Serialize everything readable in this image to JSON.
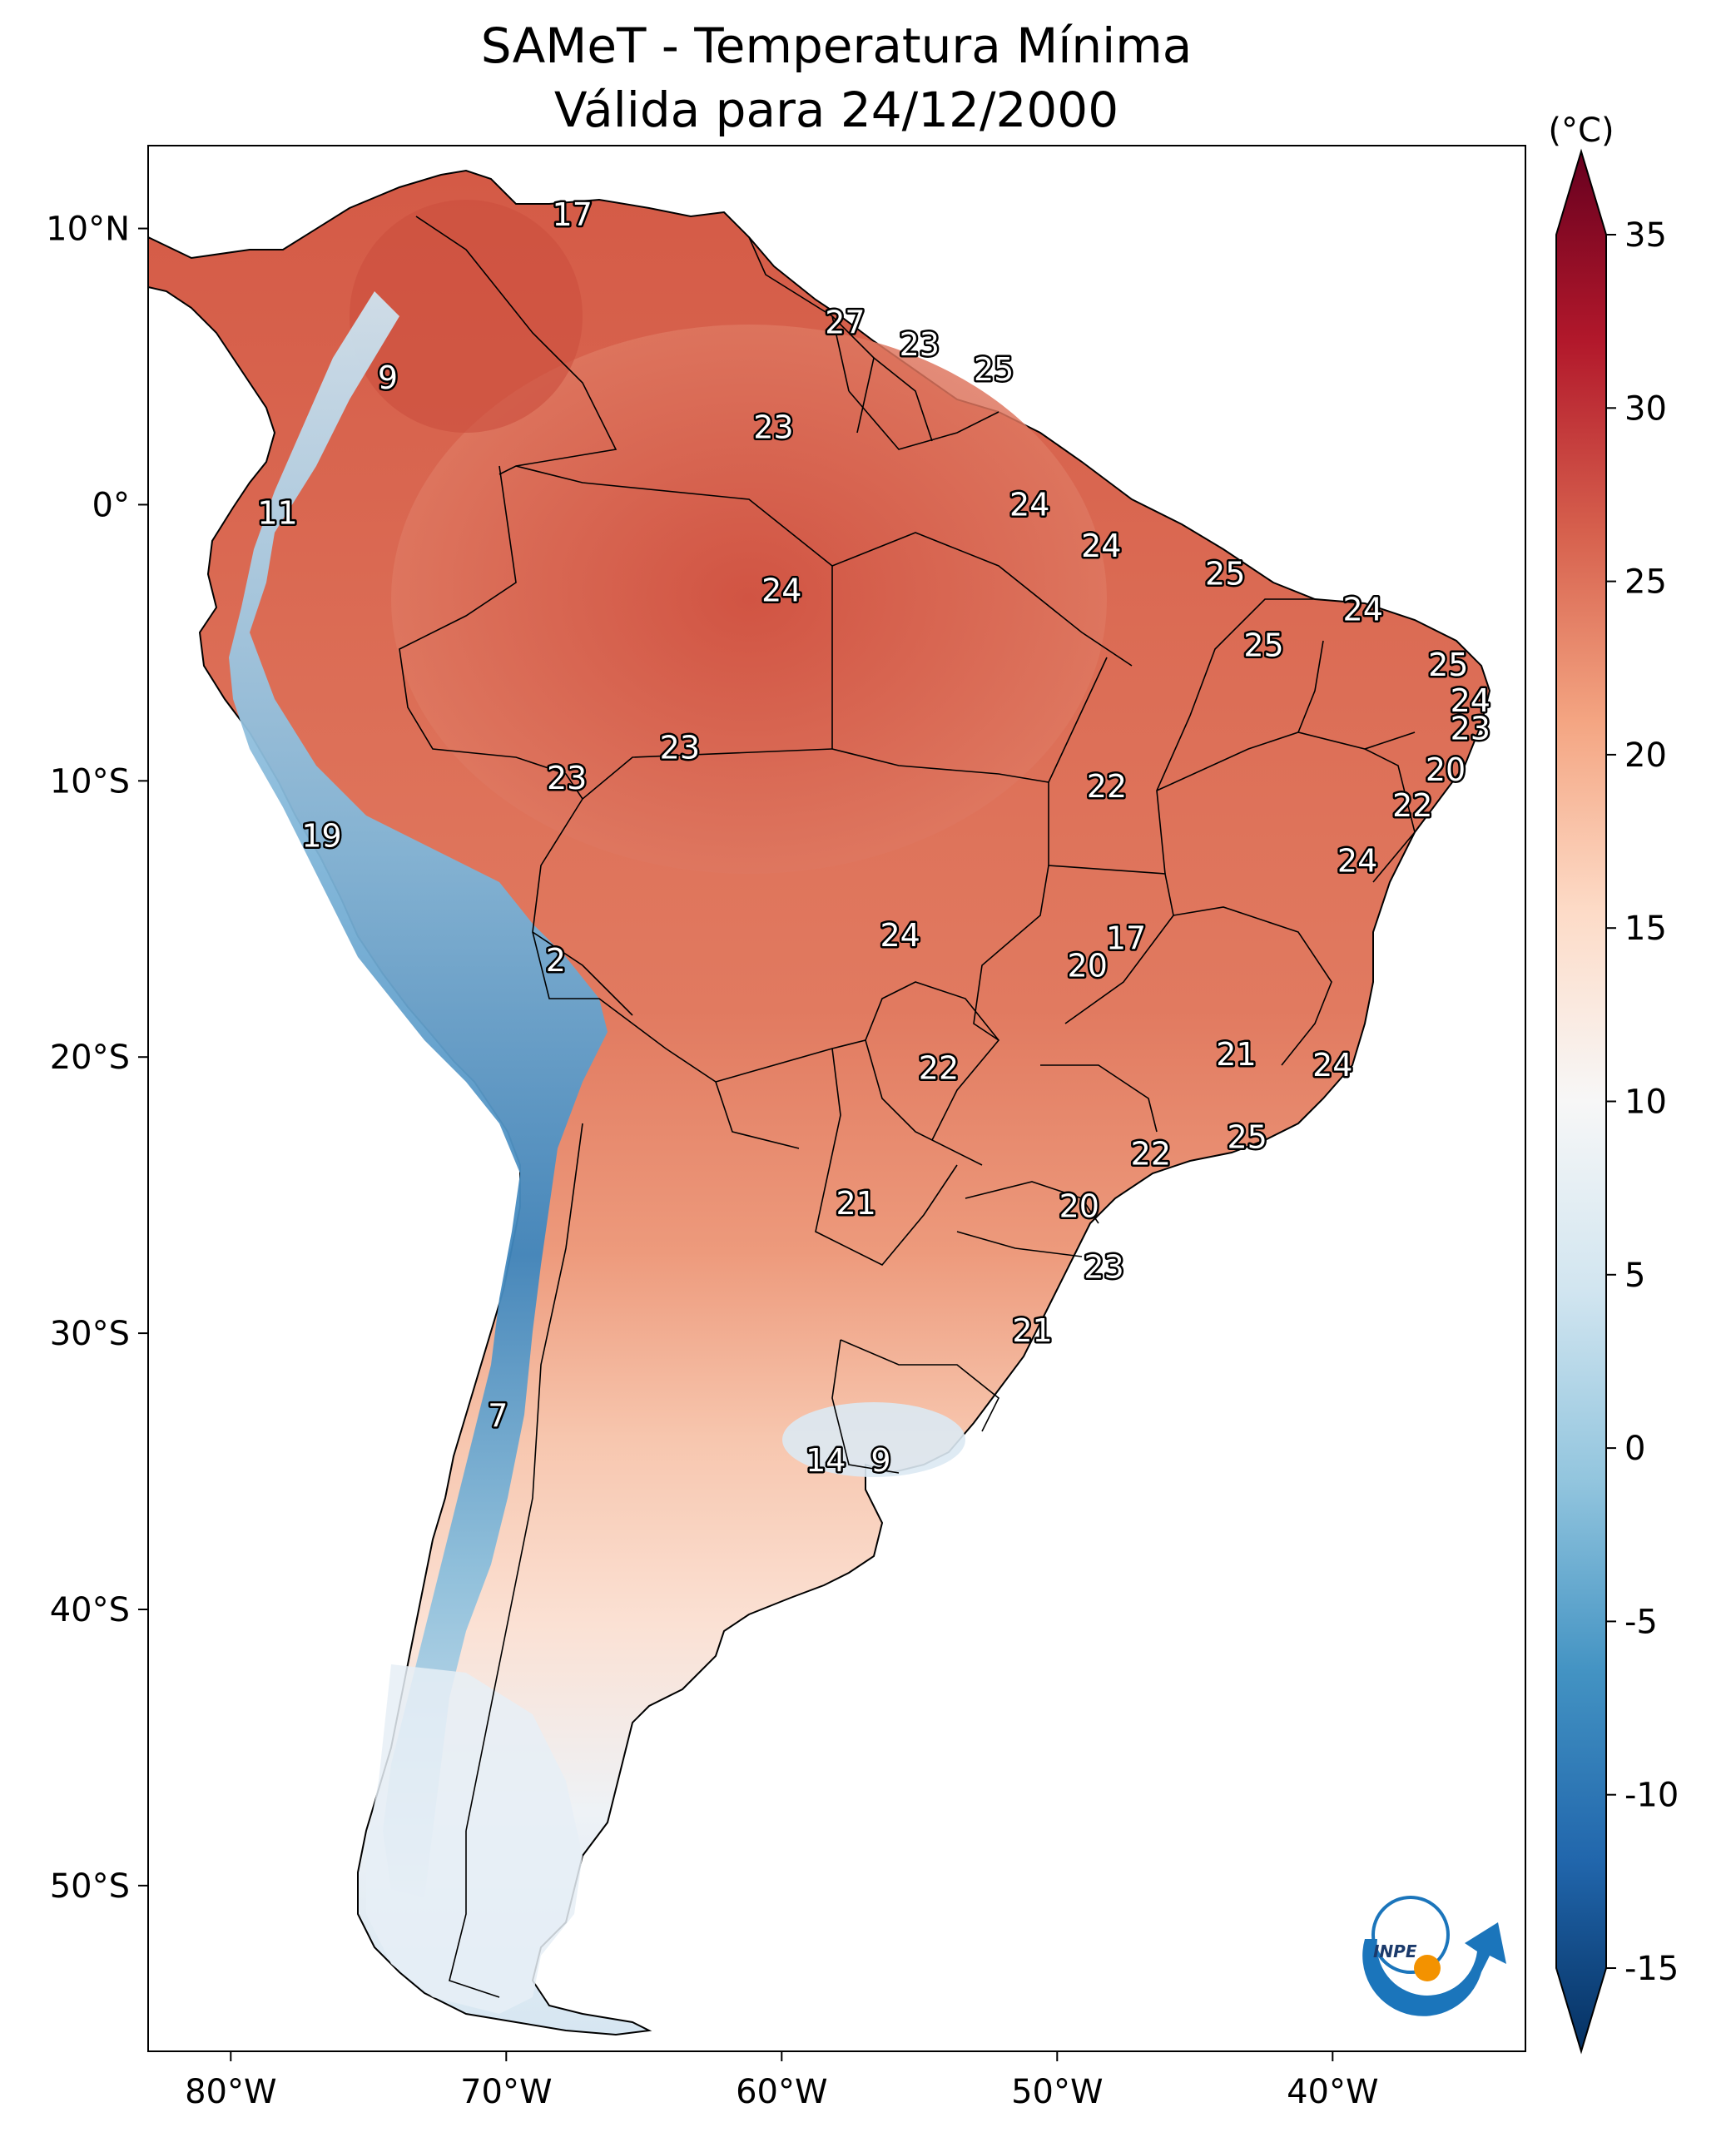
{
  "title": {
    "line1": "SAMeT - Temperatura Mínima",
    "line2": "Válida para 24/12/2000"
  },
  "map": {
    "lon_range": [
      -83,
      -33
    ],
    "lat_range": [
      -56,
      13
    ],
    "lon_ticks": [
      {
        "value": -80,
        "label": "80°W"
      },
      {
        "value": -70,
        "label": "70°W"
      },
      {
        "value": -60,
        "label": "60°W"
      },
      {
        "value": -50,
        "label": "50°W"
      },
      {
        "value": -40,
        "label": "40°W"
      }
    ],
    "lat_ticks": [
      {
        "value": 10,
        "label": "10°N"
      },
      {
        "value": 0,
        "label": "0°"
      },
      {
        "value": -10,
        "label": "10°S"
      },
      {
        "value": -20,
        "label": "20°S"
      },
      {
        "value": -30,
        "label": "30°S"
      },
      {
        "value": -40,
        "label": "40°S"
      },
      {
        "value": -50,
        "label": "50°S"
      }
    ],
    "station_labels": [
      {
        "lon": -67.6,
        "lat": 10.5,
        "value": "17"
      },
      {
        "lon": -57.7,
        "lat": 6.6,
        "value": "27"
      },
      {
        "lon": -55.0,
        "lat": 5.8,
        "value": "23"
      },
      {
        "lon": -52.3,
        "lat": 4.9,
        "value": "25"
      },
      {
        "lon": -74.3,
        "lat": 4.6,
        "value": "9"
      },
      {
        "lon": -60.3,
        "lat": 2.8,
        "value": "23"
      },
      {
        "lon": -78.3,
        "lat": -0.3,
        "value": "11"
      },
      {
        "lon": -51.0,
        "lat": 0.0,
        "value": "24"
      },
      {
        "lon": -48.4,
        "lat": -1.5,
        "value": "24"
      },
      {
        "lon": -43.9,
        "lat": -2.5,
        "value": "25"
      },
      {
        "lon": -60.0,
        "lat": -3.1,
        "value": "24"
      },
      {
        "lon": -38.9,
        "lat": -3.8,
        "value": "24"
      },
      {
        "lon": -42.5,
        "lat": -5.1,
        "value": "25"
      },
      {
        "lon": -35.8,
        "lat": -5.8,
        "value": "25"
      },
      {
        "lon": -35.0,
        "lat": -7.1,
        "value": "24"
      },
      {
        "lon": -35.0,
        "lat": -8.1,
        "value": "23"
      },
      {
        "lon": -63.7,
        "lat": -8.8,
        "value": "23"
      },
      {
        "lon": -67.8,
        "lat": -9.9,
        "value": "23"
      },
      {
        "lon": -35.9,
        "lat": -9.6,
        "value": "20"
      },
      {
        "lon": -48.2,
        "lat": -10.2,
        "value": "22"
      },
      {
        "lon": -37.1,
        "lat": -10.9,
        "value": "22"
      },
      {
        "lon": -76.7,
        "lat": -12.0,
        "value": "19"
      },
      {
        "lon": -39.1,
        "lat": -12.9,
        "value": "24"
      },
      {
        "lon": -55.7,
        "lat": -15.6,
        "value": "24"
      },
      {
        "lon": -47.5,
        "lat": -15.7,
        "value": "17"
      },
      {
        "lon": -48.9,
        "lat": -16.7,
        "value": "20"
      },
      {
        "lon": -68.2,
        "lat": -16.5,
        "value": "2"
      },
      {
        "lon": -54.3,
        "lat": -20.4,
        "value": "22"
      },
      {
        "lon": -43.5,
        "lat": -19.9,
        "value": "21"
      },
      {
        "lon": -40.0,
        "lat": -20.3,
        "value": "24"
      },
      {
        "lon": -43.1,
        "lat": -22.9,
        "value": "25"
      },
      {
        "lon": -46.6,
        "lat": -23.5,
        "value": "22"
      },
      {
        "lon": -57.3,
        "lat": -25.3,
        "value": "21"
      },
      {
        "lon": -49.2,
        "lat": -25.4,
        "value": "20"
      },
      {
        "lon": -48.3,
        "lat": -27.6,
        "value": "23"
      },
      {
        "lon": -50.9,
        "lat": -29.9,
        "value": "21"
      },
      {
        "lon": -70.3,
        "lat": -33.0,
        "value": "7"
      },
      {
        "lon": -58.4,
        "lat": -34.6,
        "value": "14"
      },
      {
        "lon": -56.4,
        "lat": -34.6,
        "value": "9"
      }
    ]
  },
  "colorbar": {
    "unit_label": "(°C)",
    "vmin": -15,
    "vmax": 35,
    "ticks": [
      {
        "value": 35,
        "label": "35"
      },
      {
        "value": 30,
        "label": "30"
      },
      {
        "value": 25,
        "label": "25"
      },
      {
        "value": 20,
        "label": "20"
      },
      {
        "value": 15,
        "label": "15"
      },
      {
        "value": 10,
        "label": "10"
      },
      {
        "value": 5,
        "label": "5"
      },
      {
        "value": 0,
        "label": "0"
      },
      {
        "value": -5,
        "label": "-5"
      },
      {
        "value": -10,
        "label": "-10"
      },
      {
        "value": -15,
        "label": "-15"
      }
    ],
    "colormap": [
      "#053061",
      "#2166ac",
      "#4393c3",
      "#92c5de",
      "#d1e5f0",
      "#f7f7f7",
      "#fddbc7",
      "#f4a582",
      "#d6604d",
      "#b2182b",
      "#67001f"
    ]
  },
  "logo": {
    "text": "INPE",
    "blue": "#1b75bb",
    "orange": "#f39200"
  },
  "colors": {
    "tropics": "#d6604d",
    "andes_cold": "#4393c3",
    "south_cool": "#fbe3d6"
  }
}
